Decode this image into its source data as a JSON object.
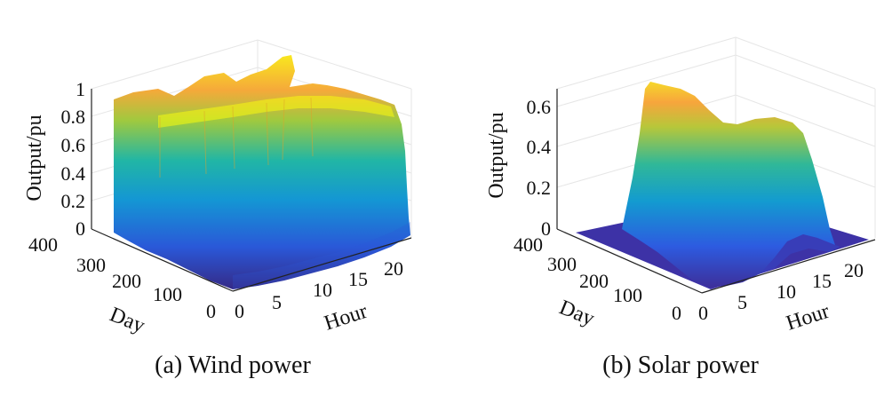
{
  "figure": {
    "panels": [
      {
        "caption": "(a) Wind power"
      },
      {
        "caption": "(b) Solar power"
      }
    ]
  },
  "chart_data": [
    {
      "type": "surface",
      "title": "",
      "caption": "(a) Wind power",
      "xlabel": "Hour",
      "ylabel": "Day",
      "zlabel": "Output/pu",
      "xlim": [
        0,
        24
      ],
      "ylim": [
        0,
        365
      ],
      "zlim": [
        0,
        1
      ],
      "x_ticks": [
        "0",
        "5",
        "10",
        "15",
        "20"
      ],
      "y_ticks": [
        "0",
        "100",
        "200",
        "300",
        "400"
      ],
      "z_ticks": [
        "0",
        "0.2",
        "0.4",
        "0.6",
        "0.8",
        "1"
      ],
      "colormap": "parula",
      "colors": {
        "low": "#352a87",
        "mid": "#21b6a5",
        "high": "#f9fb0e"
      },
      "grid": true,
      "description_values": {
        "typical_output_range": [
          0.8,
          1.0
        ]
      }
    },
    {
      "type": "surface",
      "title": "",
      "caption": "(b) Solar power",
      "xlabel": "Hour",
      "ylabel": "Day",
      "zlabel": "Output/pu",
      "xlim": [
        0,
        24
      ],
      "ylim": [
        0,
        365
      ],
      "zlim": [
        0,
        0.65
      ],
      "x_ticks": [
        "0",
        "5",
        "10",
        "15",
        "20"
      ],
      "y_ticks": [
        "0",
        "100",
        "200",
        "300",
        "400"
      ],
      "z_ticks": [
        "0",
        "0.2",
        "0.4",
        "0.6"
      ],
      "colormap": "parula",
      "colors": {
        "low": "#352a87",
        "mid": "#21b6a5",
        "high": "#f9fb0e"
      },
      "grid": true,
      "description_values": {
        "daylight_hours": [
          6,
          19
        ],
        "peak_output": 0.65
      }
    }
  ]
}
